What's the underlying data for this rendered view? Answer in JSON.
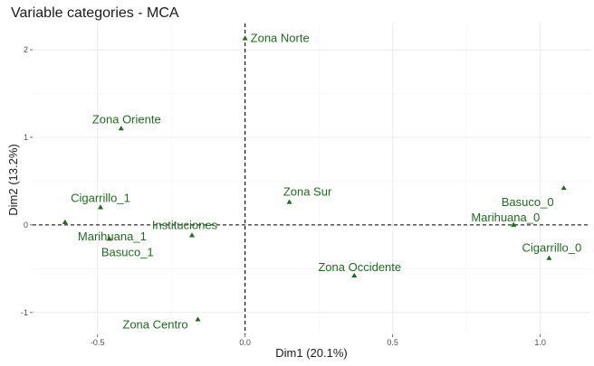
{
  "chart_data": {
    "type": "scatter",
    "title": "Variable categories - MCA",
    "xlabel": "Dim1 (20.1%)",
    "ylabel": "Dim2 (13.2%)",
    "xlim": [
      -0.72,
      1.17
    ],
    "ylim": [
      -1.25,
      2.3
    ],
    "x_ticks": [
      -0.5,
      0.0,
      0.5,
      1.0
    ],
    "x_tick_labels": [
      "-0.5",
      "0.0",
      "0.5",
      "1.0"
    ],
    "y_ticks": [
      -1,
      0,
      1,
      2
    ],
    "y_tick_labels": [
      "-1",
      "0",
      "1",
      "2"
    ],
    "reference_lines": {
      "x": 0,
      "y": 0
    },
    "grid": true,
    "point_color": "#1f6b1f",
    "marker": "triangle",
    "points": [
      {
        "label": "Zona Norte",
        "x": 0.0,
        "y": 2.13
      },
      {
        "label": "Zona Oriente",
        "x": -0.42,
        "y": 1.1
      },
      {
        "label": "Cigarrillo_1",
        "x": -0.49,
        "y": 0.2
      },
      {
        "label": "Marihuana_1",
        "x": -0.61,
        "y": 0.03
      },
      {
        "label": "Basuco_1",
        "x": -0.46,
        "y": -0.16
      },
      {
        "label": "Instituciones",
        "x": -0.18,
        "y": -0.12
      },
      {
        "label": "Zona Sur",
        "x": 0.15,
        "y": 0.26
      },
      {
        "label": "Basuco_0",
        "x": 1.08,
        "y": 0.42
      },
      {
        "label": "Marihuana_0",
        "x": 0.91,
        "y": 0.0
      },
      {
        "label": "Cigarrillo_0",
        "x": 1.03,
        "y": -0.38
      },
      {
        "label": "Zona Occidente",
        "x": 0.37,
        "y": -0.58
      },
      {
        "label": "Zona Centro",
        "x": -0.16,
        "y": -1.08
      }
    ]
  }
}
